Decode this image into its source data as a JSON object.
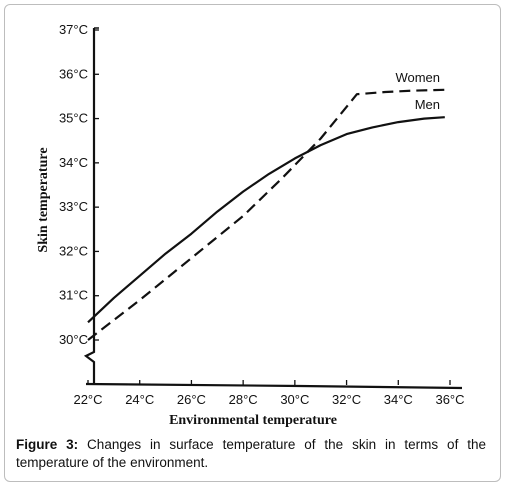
{
  "chart_data": {
    "type": "line",
    "xlabel": "Environmental temperature",
    "ylabel": "Skin temperature",
    "x_ticks": [
      "22°C",
      "24°C",
      "26°C",
      "28°C",
      "30°C",
      "32°C",
      "34°C",
      "36°C"
    ],
    "y_ticks": [
      "30°C",
      "31°C",
      "32°C",
      "33°C",
      "34°C",
      "35°C",
      "36°C",
      "37°C"
    ],
    "xlim": [
      22,
      36
    ],
    "ylim": [
      30,
      37
    ],
    "grid": false,
    "series": [
      {
        "name": "Women",
        "style": "dashed",
        "x": [
          22,
          24,
          26,
          28,
          29.5,
          31,
          32.4,
          33.5,
          34.5,
          35.8
        ],
        "y": [
          30.0,
          30.9,
          31.85,
          32.8,
          33.65,
          34.55,
          35.55,
          35.6,
          35.63,
          35.65
        ]
      },
      {
        "name": "Men",
        "style": "solid",
        "x": [
          22,
          23,
          24,
          25,
          26,
          27,
          28,
          29,
          30,
          31,
          32,
          33,
          34,
          35,
          35.8
        ],
        "y": [
          30.4,
          30.95,
          31.45,
          31.95,
          32.4,
          32.9,
          33.35,
          33.75,
          34.1,
          34.4,
          34.65,
          34.8,
          34.92,
          35.0,
          35.03
        ]
      }
    ]
  },
  "caption": {
    "label": "Figure 3:",
    "text": " Changes in surface temperature of the skin in terms of the temperature of the environment."
  }
}
